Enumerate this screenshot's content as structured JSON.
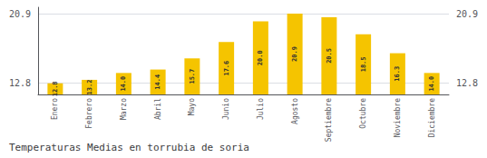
{
  "chart_data": {
    "type": "bar",
    "title": "Temperaturas Medias en torrubia de soria",
    "categories": [
      "Enero",
      "Febrero",
      "Marzo",
      "Abril",
      "Mayo",
      "Junio",
      "Julio",
      "Agosto",
      "Septiembre",
      "Octubre",
      "Noviembre",
      "Diciembre"
    ],
    "values": [
      12.8,
      13.2,
      14.0,
      14.4,
      15.7,
      17.6,
      20.0,
      20.9,
      20.5,
      18.5,
      16.3,
      14.0
    ],
    "value_labels": [
      "12.8",
      "13.2",
      "14.0",
      "14.4",
      "15.7",
      "17.6",
      "20.0",
      "20.9",
      "20.5",
      "18.5",
      "16.3",
      "14.0"
    ],
    "data_labels": true,
    "color": "#F5C400",
    "ylim": [
      11.5,
      21.652
    ],
    "yticks": [
      12.8,
      20.9
    ],
    "grid": true
  }
}
